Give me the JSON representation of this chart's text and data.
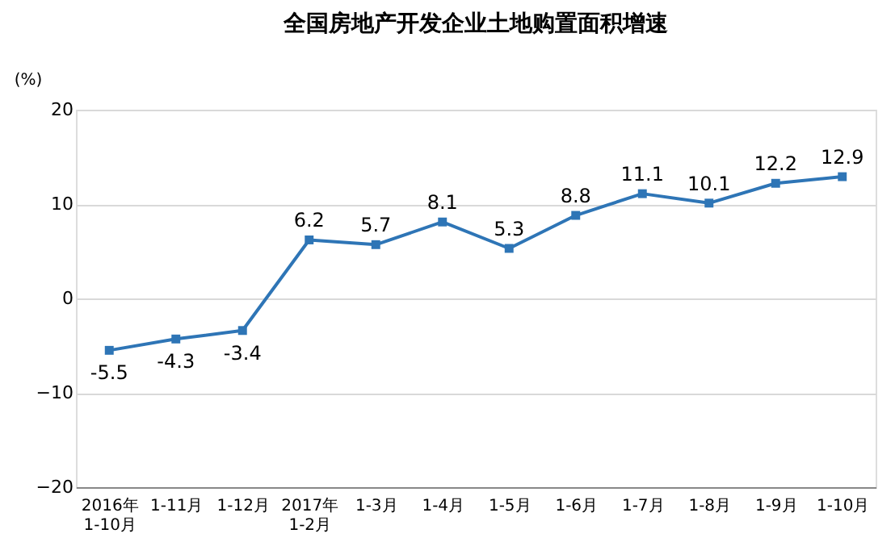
{
  "chart_data": {
    "type": "line",
    "title": "全国房地产开发企业土地购置面积增速",
    "ylabel": "(%)",
    "categories": [
      "2016年\n1-10月",
      "1-11月",
      "1-12月",
      "2017年\n1-2月",
      "1-3月",
      "1-4月",
      "1-5月",
      "1-6月",
      "1-7月",
      "1-8月",
      "1-9月",
      "1-10月"
    ],
    "series": [
      {
        "color": "#2e75b6",
        "values": [
          -5.5,
          -4.3,
          -3.4,
          6.2,
          5.7,
          8.1,
          5.3,
          8.8,
          11.1,
          10.1,
          12.2,
          12.9
        ]
      }
    ],
    "ylim": [
      -20,
      20
    ],
    "yticks": [
      -20,
      -10,
      0,
      10,
      20
    ],
    "grid": "y",
    "marker": "square",
    "line_style": "solid",
    "data_labels": true
  }
}
